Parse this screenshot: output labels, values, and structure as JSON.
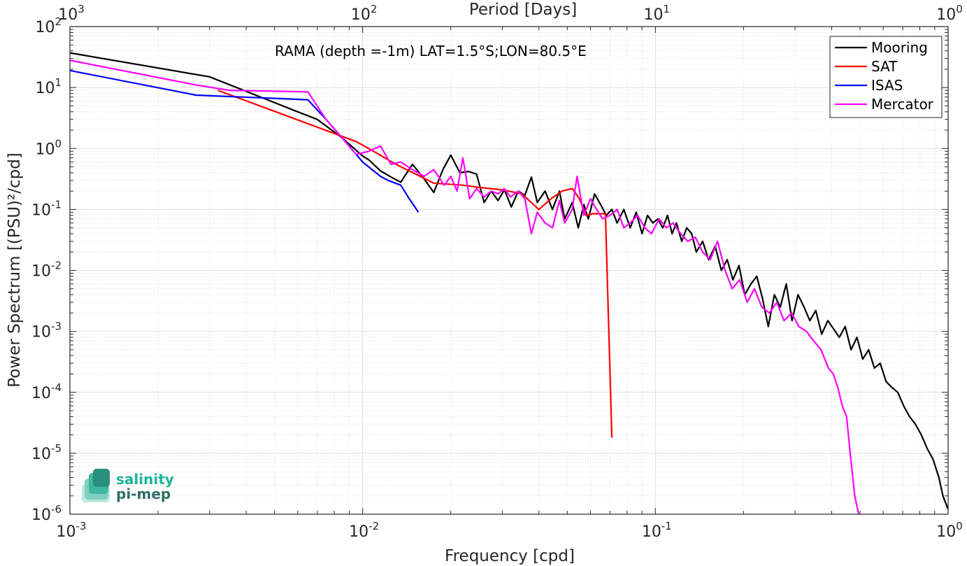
{
  "chart_data": {
    "type": "line",
    "annotation": "RAMA (depth =-1m) LAT=1.5°S;LON=80.5°E",
    "xlabel": "Frequency [cpd]",
    "ylabel": "Power Spectrum [(PSU)²/cpd]",
    "top_xlabel": "Period [Days]",
    "x_scale": "log",
    "y_scale": "log",
    "xlim": [
      0.001,
      1
    ],
    "ylim": [
      1e-06,
      100
    ],
    "grid": true,
    "minor_grid": true,
    "legend_position": "top-right",
    "x_ticks": [
      {
        "value": 0.001,
        "base": "10",
        "exp": "-3"
      },
      {
        "value": 0.01,
        "base": "10",
        "exp": "-2"
      },
      {
        "value": 0.1,
        "base": "10",
        "exp": "-1"
      },
      {
        "value": 1,
        "base": "10",
        "exp": "0"
      }
    ],
    "top_ticks": [
      {
        "value": 0.001,
        "base": "10",
        "exp": "3"
      },
      {
        "value": 0.01,
        "base": "10",
        "exp": "2"
      },
      {
        "value": 0.1,
        "base": "10",
        "exp": "1"
      },
      {
        "value": 1,
        "base": "10",
        "exp": "0"
      }
    ],
    "y_ticks": [
      {
        "value": 100,
        "base": "10",
        "exp": "2"
      },
      {
        "value": 10,
        "base": "10",
        "exp": "1"
      },
      {
        "value": 1,
        "base": "10",
        "exp": "0"
      },
      {
        "value": 0.1,
        "base": "10",
        "exp": "-1"
      },
      {
        "value": 0.01,
        "base": "10",
        "exp": "-2"
      },
      {
        "value": 0.001,
        "base": "10",
        "exp": "-3"
      },
      {
        "value": 0.0001,
        "base": "10",
        "exp": "-4"
      },
      {
        "value": 1e-05,
        "base": "10",
        "exp": "-5"
      },
      {
        "value": 1e-06,
        "base": "10",
        "exp": "-6"
      }
    ],
    "series": [
      {
        "name": "Mooring",
        "color": "#000000",
        "x": [
          0.001,
          0.003,
          0.006,
          0.007,
          0.0085,
          0.01,
          0.0105,
          0.0115,
          0.0125,
          0.0135,
          0.0148,
          0.0162,
          0.0175,
          0.0188,
          0.02,
          0.0215,
          0.023,
          0.0245,
          0.026,
          0.0275,
          0.029,
          0.0305,
          0.0322,
          0.034,
          0.0358,
          0.0377,
          0.0395,
          0.042,
          0.0445,
          0.047,
          0.049,
          0.052,
          0.0545,
          0.057,
          0.059,
          0.062,
          0.065,
          0.068,
          0.071,
          0.074,
          0.078,
          0.082,
          0.086,
          0.09,
          0.094,
          0.098,
          0.102,
          0.106,
          0.11,
          0.114,
          0.118,
          0.123,
          0.128,
          0.133,
          0.138,
          0.145,
          0.152,
          0.16,
          0.168,
          0.176,
          0.184,
          0.193,
          0.202,
          0.212,
          0.222,
          0.232,
          0.243,
          0.255,
          0.267,
          0.28,
          0.293,
          0.307,
          0.322,
          0.337,
          0.353,
          0.37,
          0.388,
          0.406,
          0.425,
          0.445,
          0.466,
          0.488,
          0.511,
          0.535,
          0.56,
          0.586,
          0.614,
          0.643,
          0.673,
          0.705,
          0.738,
          0.773,
          0.81,
          0.848,
          0.888,
          0.93,
          0.96,
          1.0
        ],
        "y": [
          37,
          15,
          4,
          3,
          1.5,
          0.75,
          0.65,
          0.43,
          0.34,
          0.28,
          0.55,
          0.32,
          0.19,
          0.45,
          0.78,
          0.4,
          0.42,
          0.38,
          0.13,
          0.2,
          0.14,
          0.21,
          0.11,
          0.2,
          0.17,
          0.34,
          0.13,
          0.2,
          0.1,
          0.2,
          0.07,
          0.13,
          0.05,
          0.12,
          0.07,
          0.18,
          0.12,
          0.08,
          0.1,
          0.06,
          0.1,
          0.05,
          0.09,
          0.04,
          0.08,
          0.06,
          0.07,
          0.05,
          0.08,
          0.04,
          0.06,
          0.03,
          0.05,
          0.04,
          0.02,
          0.03,
          0.015,
          0.025,
          0.01,
          0.015,
          0.007,
          0.012,
          0.004,
          0.006,
          0.008,
          0.0035,
          0.0012,
          0.004,
          0.0025,
          0.006,
          0.0015,
          0.004,
          0.0025,
          0.0015,
          0.0022,
          0.0009,
          0.0015,
          0.0011,
          0.0008,
          0.0012,
          0.0005,
          0.0008,
          0.00035,
          0.0005,
          0.00025,
          0.0003,
          0.00015,
          0.00012,
          0.0001,
          6e-05,
          4e-05,
          3e-05,
          2e-05,
          1.2e-05,
          8e-06,
          4e-06,
          2e-06,
          1.2e-06
        ]
      },
      {
        "name": "SAT",
        "color": "#ff0000",
        "x": [
          0.0032,
          0.0095,
          0.0105,
          0.013,
          0.0175,
          0.022,
          0.025,
          0.03,
          0.035,
          0.04,
          0.044,
          0.048,
          0.052,
          0.055,
          0.058,
          0.061,
          0.064,
          0.067,
          0.0675,
          0.071
        ],
        "y": [
          9,
          1.3,
          1.0,
          0.55,
          0.27,
          0.25,
          0.23,
          0.21,
          0.18,
          0.1,
          0.15,
          0.2,
          0.22,
          0.15,
          0.08,
          0.085,
          0.085,
          0.085,
          0.085,
          1.8e-05
        ]
      },
      {
        "name": "ISAS",
        "color": "#0000ff",
        "x": [
          0.001,
          0.0027,
          0.0065,
          0.0075,
          0.0085,
          0.01,
          0.0115,
          0.0122,
          0.0135,
          0.0143,
          0.0155
        ],
        "y": [
          19,
          7.5,
          6.3,
          3.0,
          1.5,
          0.6,
          0.35,
          0.3,
          0.25,
          0.16,
          0.09
        ]
      },
      {
        "name": "Mercator",
        "color": "#ff00ff",
        "x": [
          0.001,
          0.0027,
          0.0035,
          0.0065,
          0.0075,
          0.0085,
          0.0095,
          0.0105,
          0.0115,
          0.0125,
          0.0135,
          0.0148,
          0.0162,
          0.0175,
          0.019,
          0.02,
          0.021,
          0.022,
          0.0232,
          0.0245,
          0.026,
          0.0275,
          0.029,
          0.0305,
          0.032,
          0.034,
          0.0358,
          0.0377,
          0.0395,
          0.042,
          0.0445,
          0.047,
          0.049,
          0.052,
          0.054,
          0.057,
          0.06,
          0.063,
          0.066,
          0.07,
          0.074,
          0.078,
          0.082,
          0.087,
          0.092,
          0.097,
          0.103,
          0.109,
          0.115,
          0.122,
          0.129,
          0.137,
          0.145,
          0.154,
          0.163,
          0.173,
          0.183,
          0.194,
          0.206,
          0.218,
          0.231,
          0.245,
          0.26,
          0.275,
          0.292,
          0.309,
          0.328,
          0.347,
          0.368,
          0.39,
          0.405,
          0.42,
          0.435,
          0.45,
          0.465,
          0.48,
          0.495
        ],
        "y": [
          28,
          11,
          9,
          8.5,
          3,
          1.5,
          0.8,
          0.9,
          1.1,
          0.55,
          0.6,
          0.45,
          0.35,
          0.45,
          0.25,
          0.35,
          0.2,
          0.7,
          0.15,
          0.22,
          0.16,
          0.2,
          0.18,
          0.22,
          0.16,
          0.2,
          0.15,
          0.04,
          0.09,
          0.06,
          0.05,
          0.14,
          0.06,
          0.1,
          0.35,
          0.08,
          0.15,
          0.1,
          0.07,
          0.08,
          0.1,
          0.05,
          0.06,
          0.08,
          0.05,
          0.04,
          0.07,
          0.05,
          0.06,
          0.04,
          0.03,
          0.035,
          0.02,
          0.015,
          0.03,
          0.01,
          0.005,
          0.007,
          0.003,
          0.005,
          0.0025,
          0.002,
          0.003,
          0.0015,
          0.002,
          0.0012,
          0.001,
          0.0007,
          0.0005,
          0.00025,
          0.0002,
          0.00012,
          6e-05,
          4e-05,
          8e-06,
          2e-06,
          1e-06
        ]
      }
    ]
  },
  "logo": {
    "line1": "salinity",
    "line2": "pi-mep",
    "color1": "#1db59c",
    "color2": "#2e6f63"
  }
}
